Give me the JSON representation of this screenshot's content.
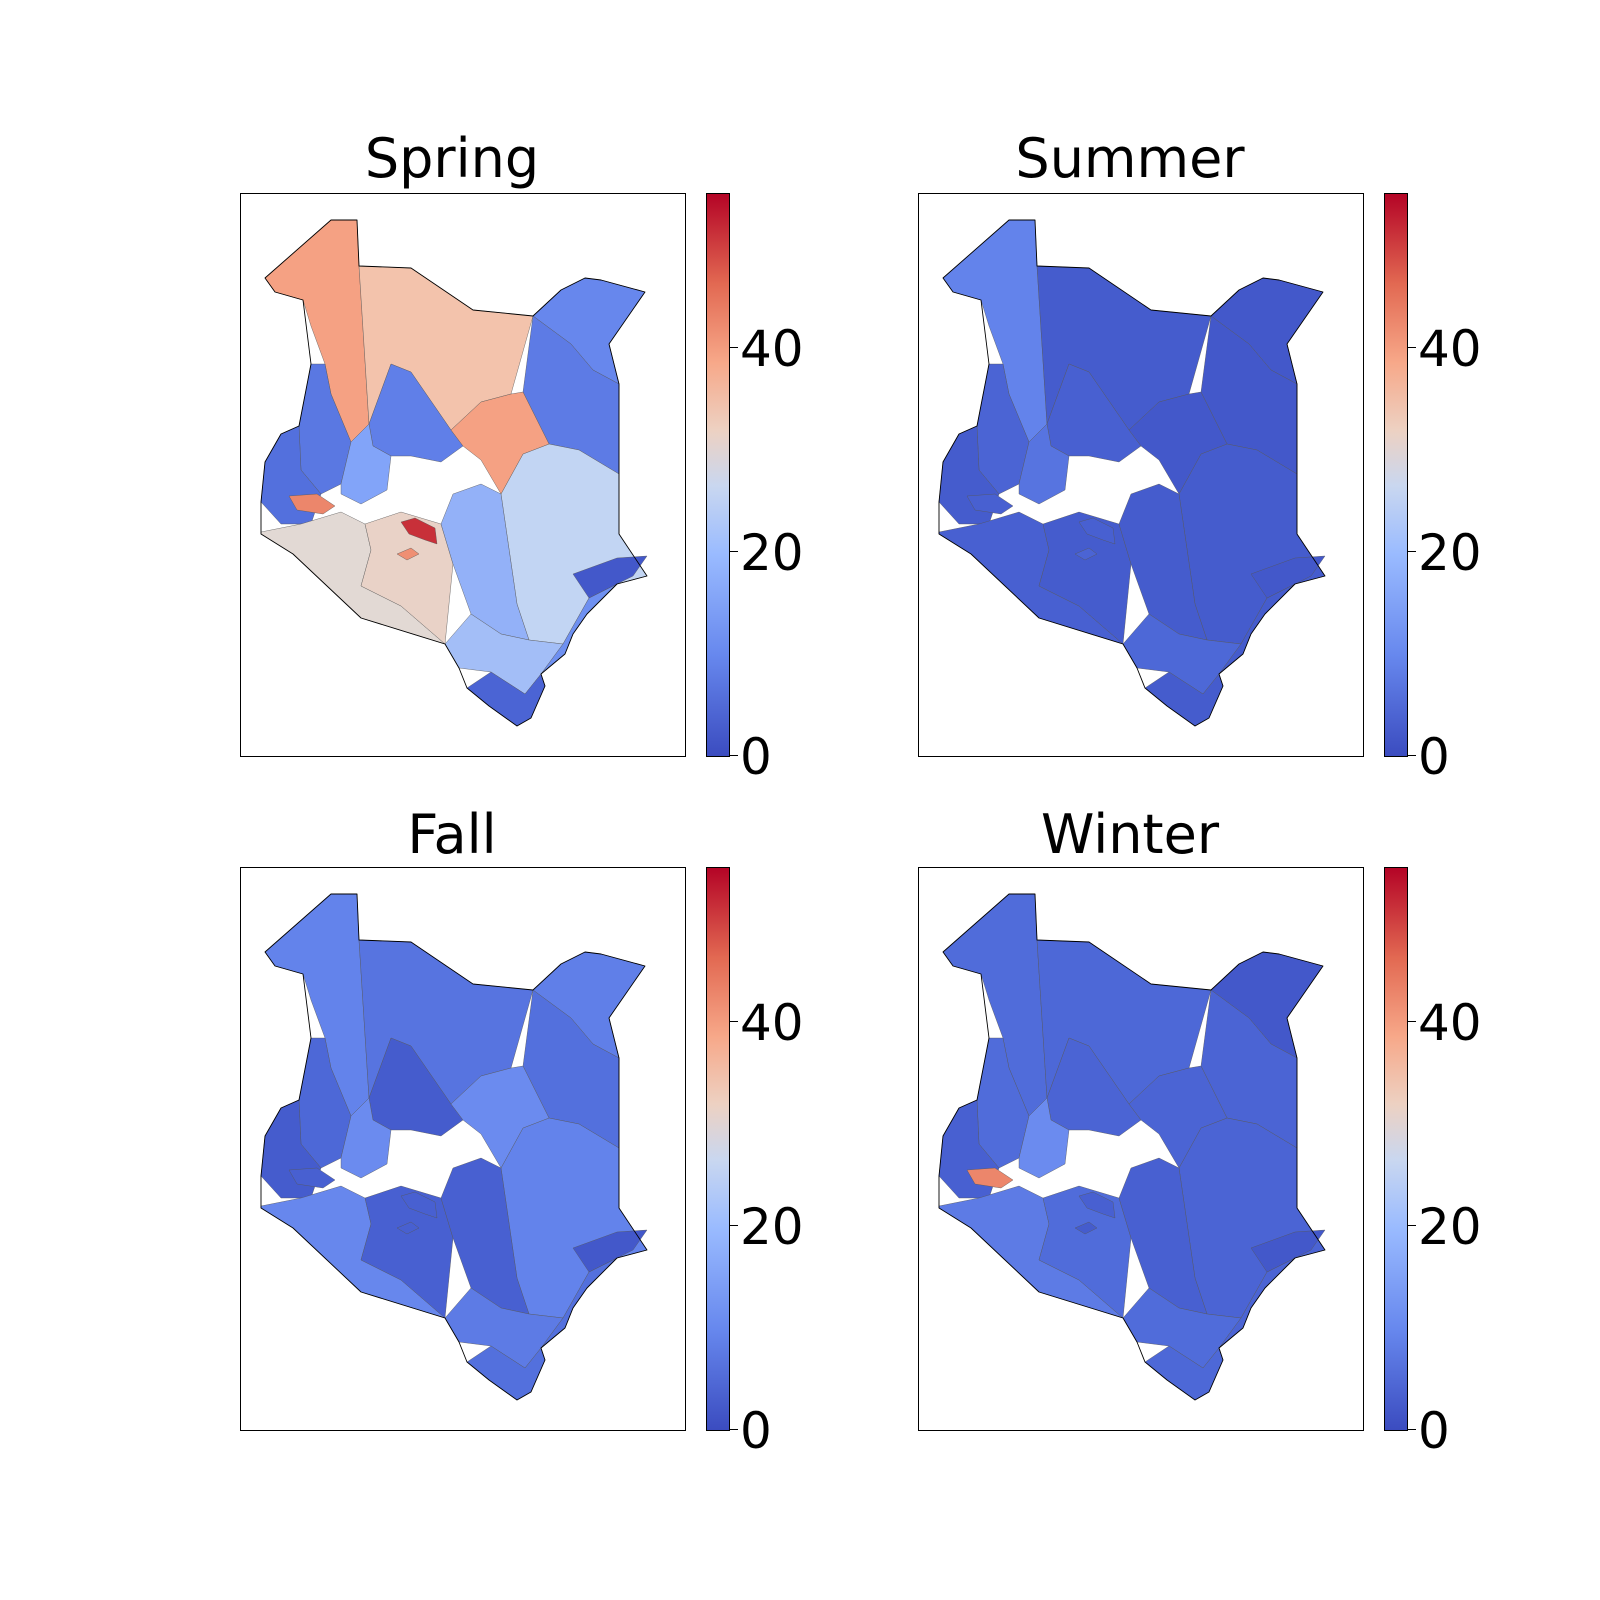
{
  "figure": {
    "colormap": {
      "name": "coolwarm",
      "low_color": "#3b4cc0",
      "mid_color": "#dddddd",
      "high_color": "#b40426",
      "range": [
        0,
        55
      ]
    },
    "colorbar_ticks": [
      "0",
      "20",
      "40"
    ],
    "border_color": "#000000"
  },
  "panels": [
    {
      "id": "spring",
      "title": "Spring",
      "regions": {
        "nw": 42,
        "n": 36,
        "ne": 15,
        "ec": 12,
        "e": 25,
        "c": 13,
        "cn": 42,
        "w": 11,
        "ww": 9,
        "wc": 21,
        "sw": 30,
        "sc": 32,
        "s": 22,
        "se": 23,
        "coast": 17,
        "lamu": 3,
        "sd": 6,
        "hot1": 52,
        "hot2": 45,
        "hot3": 44
      }
    },
    {
      "id": "summer",
      "title": "Summer",
      "regions": {
        "nw": 14,
        "n": 4,
        "ne": 3,
        "ec": 3,
        "e": 4,
        "c": 5,
        "cn": 3,
        "w": 6,
        "ww": 4,
        "wc": 10,
        "sw": 5,
        "sc": 4,
        "s": 4,
        "se": 7,
        "coast": 4,
        "lamu": 3,
        "sd": 4,
        "hot1": 5,
        "hot2": 5,
        "hot3": 6
      }
    },
    {
      "id": "fall",
      "title": "Fall",
      "regions": {
        "nw": 14,
        "n": 10,
        "ne": 13,
        "ec": 9,
        "e": 14,
        "c": 4,
        "cn": 16,
        "w": 7,
        "ww": 4,
        "wc": 16,
        "sw": 15,
        "sc": 5,
        "s": 5,
        "se": 12,
        "coast": 9,
        "lamu": 3,
        "sd": 9,
        "hot1": 5,
        "hot2": 5,
        "hot3": 5
      }
    },
    {
      "id": "winter",
      "title": "Winter",
      "regions": {
        "nw": 8,
        "n": 7,
        "ne": 3,
        "ec": 6,
        "e": 6,
        "c": 6,
        "cn": 6,
        "w": 8,
        "ww": 5,
        "wc": 16,
        "sw": 12,
        "sc": 8,
        "s": 5,
        "se": 8,
        "coast": 6,
        "lamu": 3,
        "sd": 7,
        "hot1": 5,
        "hot2": 45,
        "hot3": 4
      }
    }
  ]
}
